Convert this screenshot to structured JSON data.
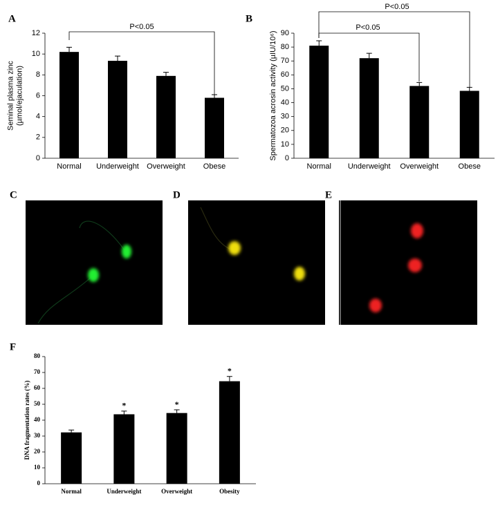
{
  "chart_data": [
    {
      "type": "bar",
      "panel": "A",
      "ylabel": [
        "Seminal plasma zinc",
        "(µmol/ejaculation)"
      ],
      "categories": [
        "Normal",
        "Underweight",
        "Overweight",
        "Obese"
      ],
      "values": [
        10.2,
        9.35,
        7.9,
        5.8
      ],
      "errors": [
        0.45,
        0.45,
        0.35,
        0.3
      ],
      "color": "#000000",
      "ylim": [
        0,
        12
      ],
      "yticks": [
        0,
        2,
        4,
        6,
        8,
        10,
        12
      ],
      "annotations": [
        "P<0.05"
      ]
    },
    {
      "type": "bar",
      "panel": "B",
      "ylabel": [
        "Spermatozoa acrosin activity (µIU/10⁶)"
      ],
      "categories": [
        "Normal",
        "Underweight",
        "Overweight",
        "Obese"
      ],
      "values": [
        81,
        72,
        52,
        48.5
      ],
      "errors": [
        3.5,
        3.5,
        2.5,
        2.5
      ],
      "color": "#000000",
      "ylim": [
        0,
        90
      ],
      "yticks": [
        0,
        10,
        20,
        30,
        40,
        50,
        60,
        70,
        80,
        90
      ],
      "annotations": [
        "P<0.05",
        "P<0.05"
      ]
    },
    {
      "type": "bar",
      "panel": "F",
      "ylabel": [
        "DNA fragmentation rates (%)"
      ],
      "categories": [
        "Normal",
        "Underweight",
        "Overweight",
        "Obesity"
      ],
      "values": [
        32.3,
        43.7,
        44.5,
        64.5
      ],
      "errors": [
        1.5,
        2,
        2,
        3
      ],
      "color": "#000000",
      "significance": [
        null,
        "*",
        "*",
        "*"
      ],
      "ylim": [
        0,
        80
      ],
      "yticks": [
        0,
        10,
        20,
        30,
        40,
        50,
        60,
        70,
        80
      ]
    }
  ],
  "image_panels": [
    {
      "label": "C"
    },
    {
      "label": "D"
    },
    {
      "label": "E"
    }
  ]
}
